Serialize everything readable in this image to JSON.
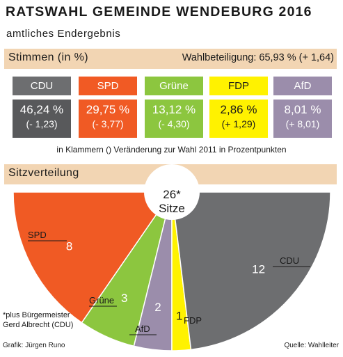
{
  "header": {
    "title": "RATSWAHL GEMEINDE WENDEBURG 2016",
    "subtitle": "amtliches Endergebnis"
  },
  "votes_band": {
    "label": "Stimmen (in %)",
    "turnout": "Wahlbeteiligung: 65,93 % (+ 1,64)"
  },
  "parties": [
    {
      "name": "CDU",
      "pct_label": "46,24 %",
      "change_label": "(- 1,23)",
      "head_color": "#6d6e70",
      "val_color": "#58595b"
    },
    {
      "name": "SPD",
      "pct_label": "29,75 %",
      "change_label": "(- 3,77)",
      "head_color": "#f15a24",
      "val_color": "#f05a24"
    },
    {
      "name": "Grüne",
      "pct_label": "13,12 %",
      "change_label": "(- 4,30)",
      "head_color": "#8cc63f",
      "val_color": "#8cc63f"
    },
    {
      "name": "FDP",
      "pct_label": "2,86 %",
      "change_label": "(+ 1,29)",
      "head_color": "#fff200",
      "val_color": "#fff200"
    },
    {
      "name": "AfD",
      "pct_label": "8,01 %",
      "change_label": "(+ 8,01)",
      "head_color": "#9b8dab",
      "val_color": "#9b8dab"
    }
  ],
  "note": "in Klammern () Veränderung zur Wahl 2011 in Prozentpunkten",
  "seats_band": {
    "label": "Sitzverteilung"
  },
  "seats_center": {
    "line1": "26*",
    "line2": "Sitze"
  },
  "footnote": {
    "line1": "*plus Bürgermeister",
    "line2": "Gerd Albrecht (CDU)"
  },
  "credit": "Grafik: Jürgen  Runo",
  "source": "Quelle: Wahlleiter",
  "chart_data": [
    {
      "type": "bar",
      "title": "Stimmen (in %)",
      "categories": [
        "CDU",
        "SPD",
        "Grüne",
        "FDP",
        "AfD"
      ],
      "values": [
        46.24,
        29.75,
        13.12,
        2.86,
        8.01
      ],
      "change_vs_2011": [
        -1.23,
        -3.77,
        -4.3,
        1.29,
        8.01
      ],
      "turnout": 65.93,
      "turnout_change": 1.64
    },
    {
      "type": "pie",
      "title": "Sitzverteilung",
      "total_label": "26* Sitze",
      "categories": [
        "SPD",
        "Grüne",
        "AfD",
        "FDP",
        "CDU"
      ],
      "values": [
        8,
        3,
        2,
        1,
        12
      ],
      "colors": [
        "#f05a24",
        "#8cc63f",
        "#9b8dab",
        "#fff200",
        "#6d6e70"
      ]
    }
  ]
}
